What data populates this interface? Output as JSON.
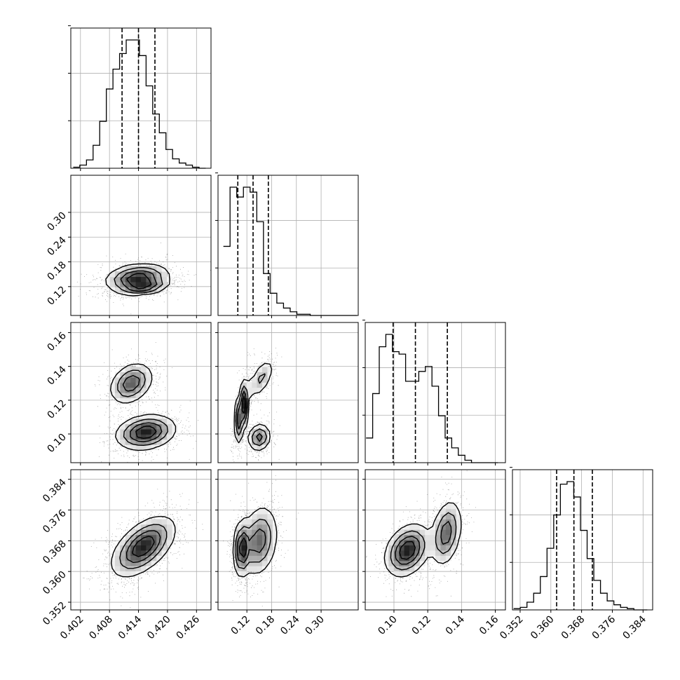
{
  "chart_data": {
    "type": "corner",
    "title": "",
    "parameters": [
      {
        "name": "",
        "range": [
          0.4,
          0.429
        ],
        "ticks": [
          {
            "value": 0.402,
            "label": "0.402"
          },
          {
            "value": 0.408,
            "label": "0.408"
          },
          {
            "value": 0.414,
            "label": "0.414"
          },
          {
            "value": 0.42,
            "label": "0.420"
          },
          {
            "value": 0.426,
            "label": "0.426"
          }
        ],
        "quantiles": [
          0.4106,
          0.414,
          0.4174
        ],
        "histogram": {
          "edges_start": 0.4005,
          "bin_width": 0.00137,
          "counts": [
            1,
            3,
            8,
            22,
            45,
            76,
            95,
            110,
            123,
            123,
            108,
            79,
            52,
            34,
            18,
            9,
            5,
            3,
            1,
            0
          ]
        }
      },
      {
        "name": "",
        "range": [
          0.05,
          0.39
        ],
        "ticks": [
          {
            "value": 0.12,
            "label": "0.12"
          },
          {
            "value": 0.18,
            "label": "0.18"
          },
          {
            "value": 0.24,
            "label": "0.24"
          },
          {
            "value": 0.3,
            "label": "0.30"
          }
        ],
        "quantiles": [
          0.098,
          0.135,
          0.172
        ],
        "histogram": {
          "edges_start": 0.063,
          "bin_width": 0.0162,
          "counts": [
            28,
            52,
            48,
            52,
            50,
            38,
            17,
            9,
            5,
            3,
            1.5,
            0.5,
            0.5,
            0,
            0,
            0,
            0,
            0,
            0,
            0
          ]
        }
      },
      {
        "name": "",
        "range": [
          0.083,
          0.166
        ],
        "ticks": [
          {
            "value": 0.1,
            "label": "0.10"
          },
          {
            "value": 0.12,
            "label": "0.12"
          },
          {
            "value": 0.14,
            "label": "0.14"
          },
          {
            "value": 0.16,
            "label": "0.16"
          }
        ],
        "quantiles": [
          0.0995,
          0.1127,
          0.1316
        ],
        "histogram": {
          "edges_start": 0.0835,
          "bin_width": 0.0039,
          "counts": [
            10,
            28,
            47,
            52,
            45,
            44,
            33,
            33,
            37,
            39,
            31,
            19,
            10,
            6,
            3,
            1,
            0,
            0,
            0,
            0
          ]
        }
      },
      {
        "name": "",
        "range": [
          0.35,
          0.3865
        ],
        "ticks": [
          {
            "value": 0.352,
            "label": "0.352"
          },
          {
            "value": 0.36,
            "label": "0.360"
          },
          {
            "value": 0.368,
            "label": "0.368"
          },
          {
            "value": 0.376,
            "label": "0.376"
          },
          {
            "value": 0.384,
            "label": "0.384"
          }
        ],
        "quantiles": [
          0.3615,
          0.366,
          0.3708
        ],
        "histogram": {
          "edges_start": 0.3503,
          "bin_width": 0.00174,
          "counts": [
            1,
            2,
            6,
            13,
            26,
            48,
            74,
            98,
            100,
            88,
            62,
            40,
            23,
            13,
            7,
            4,
            2,
            1,
            0,
            0
          ]
        }
      }
    ],
    "pairs": [
      {
        "x_param": 0,
        "y_param": 1,
        "rho": 0.1,
        "modes": [
          {
            "mx": 0.4138,
            "my": 0.14,
            "sx": 0.0032,
            "sy": 0.017,
            "r": 0.2,
            "w": 1.0
          },
          {
            "mx": 0.4152,
            "my": 0.118,
            "sx": 0.0025,
            "sy": 0.009,
            "r": 0.4,
            "w": 0.6
          }
        ]
      },
      {
        "x_param": 0,
        "y_param": 2,
        "rho": -0.35,
        "modes": [
          {
            "mx": 0.4125,
            "my": 0.13,
            "sx": 0.0022,
            "sy": 0.006,
            "r": 0.3,
            "w": 0.55
          },
          {
            "mx": 0.4155,
            "my": 0.101,
            "sx": 0.003,
            "sy": 0.005,
            "r": 0.2,
            "w": 0.75
          }
        ]
      },
      {
        "x_param": 0,
        "y_param": 3,
        "rho": 0.62,
        "modes": [
          {
            "mx": 0.415,
            "my": 0.3665,
            "sx": 0.0032,
            "sy": 0.0038,
            "r": 0.55,
            "w": 1.0
          }
        ]
      },
      {
        "x_param": 1,
        "y_param": 2,
        "rho": 0.55,
        "modes": [
          {
            "mx": 0.108,
            "my": 0.114,
            "sx": 0.008,
            "sy": 0.009,
            "r": 0.6,
            "w": 0.8
          },
          {
            "mx": 0.15,
            "my": 0.098,
            "sx": 0.014,
            "sy": 0.004,
            "r": 0.1,
            "w": 0.45
          },
          {
            "mx": 0.155,
            "my": 0.133,
            "sx": 0.016,
            "sy": 0.006,
            "r": 0.6,
            "w": 0.25
          }
        ]
      },
      {
        "x_param": 1,
        "y_param": 3,
        "rho": 0.05,
        "modes": [
          {
            "mx": 0.108,
            "my": 0.366,
            "sx": 0.01,
            "sy": 0.0035,
            "r": 0.1,
            "w": 0.8
          },
          {
            "mx": 0.15,
            "my": 0.368,
            "sx": 0.022,
            "sy": 0.0045,
            "r": 0.2,
            "w": 0.6
          }
        ]
      },
      {
        "x_param": 2,
        "y_param": 3,
        "rho": 0.45,
        "modes": [
          {
            "mx": 0.108,
            "my": 0.3655,
            "sx": 0.0065,
            "sy": 0.0033,
            "r": 0.3,
            "w": 1.0
          },
          {
            "mx": 0.131,
            "my": 0.37,
            "sx": 0.0045,
            "sy": 0.0042,
            "r": 0.3,
            "w": 0.7
          }
        ]
      }
    ],
    "contour_levels": [
      0.12,
      0.32,
      0.55,
      0.78
    ],
    "grid": true,
    "quantile_lines": "dashed"
  }
}
